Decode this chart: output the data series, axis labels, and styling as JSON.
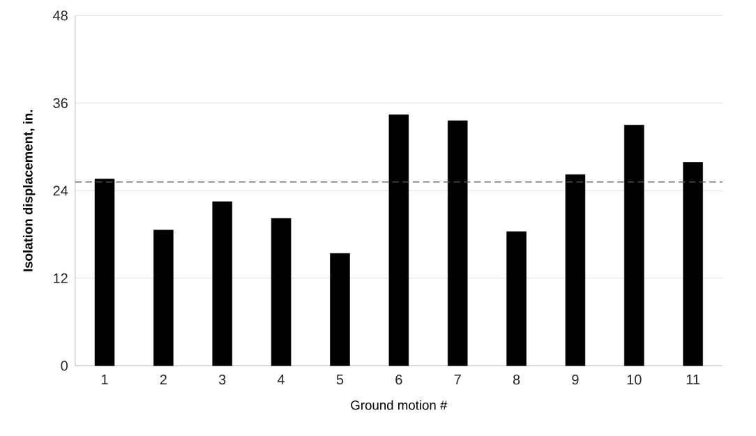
{
  "chart_data": {
    "type": "bar",
    "xlabel": "Ground motion #",
    "ylabel": "Isolation displacement, in.",
    "categories": [
      "1",
      "2",
      "3",
      "4",
      "5",
      "6",
      "7",
      "8",
      "9",
      "10",
      "11"
    ],
    "values": [
      25.6,
      18.6,
      22.5,
      20.2,
      15.4,
      34.4,
      33.6,
      18.4,
      26.2,
      33.0,
      27.9
    ],
    "color": "#000000",
    "ylim": [
      0,
      48
    ],
    "yticks": [
      0,
      12,
      24,
      36,
      48
    ],
    "grid": "y",
    "ref_lines": [
      {
        "axis": "y",
        "value": 25.2,
        "color": "#595959",
        "line_style": "dashed"
      }
    ]
  }
}
